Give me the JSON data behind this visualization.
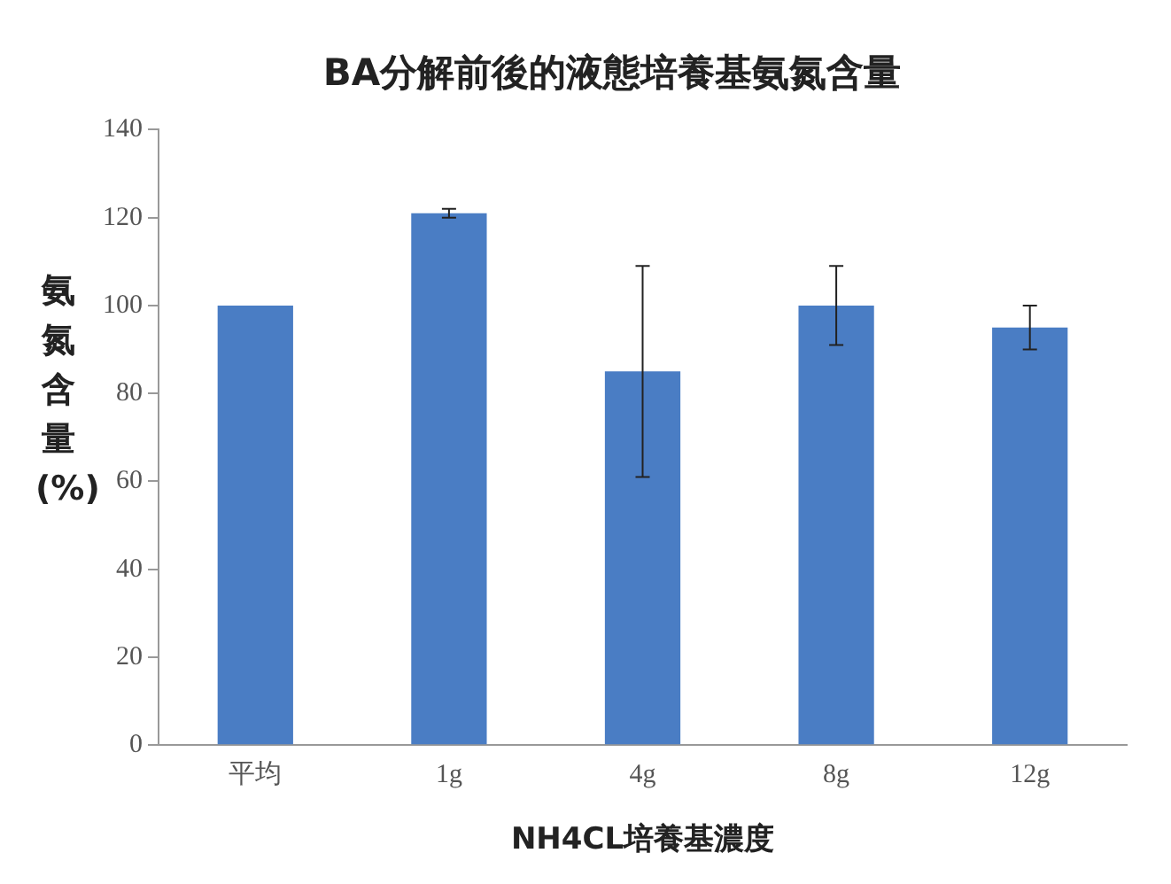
{
  "chart_data": {
    "type": "bar",
    "title": "BA分解前後的液態培養基氨氮含量",
    "xlabel": "NH4CL培養基濃度",
    "ylabel": "氨氮含量(%)",
    "categories": [
      "平均",
      "1g",
      "4g",
      "8g",
      "12g"
    ],
    "values": [
      100,
      121,
      85,
      100,
      95
    ],
    "errors": [
      null,
      1,
      24,
      9,
      5
    ],
    "color": "#4a7dc4",
    "ylim": [
      0,
      140
    ],
    "yticks": [
      0,
      20,
      40,
      60,
      80,
      100,
      120,
      140
    ],
    "grid": false,
    "legend": false
  }
}
